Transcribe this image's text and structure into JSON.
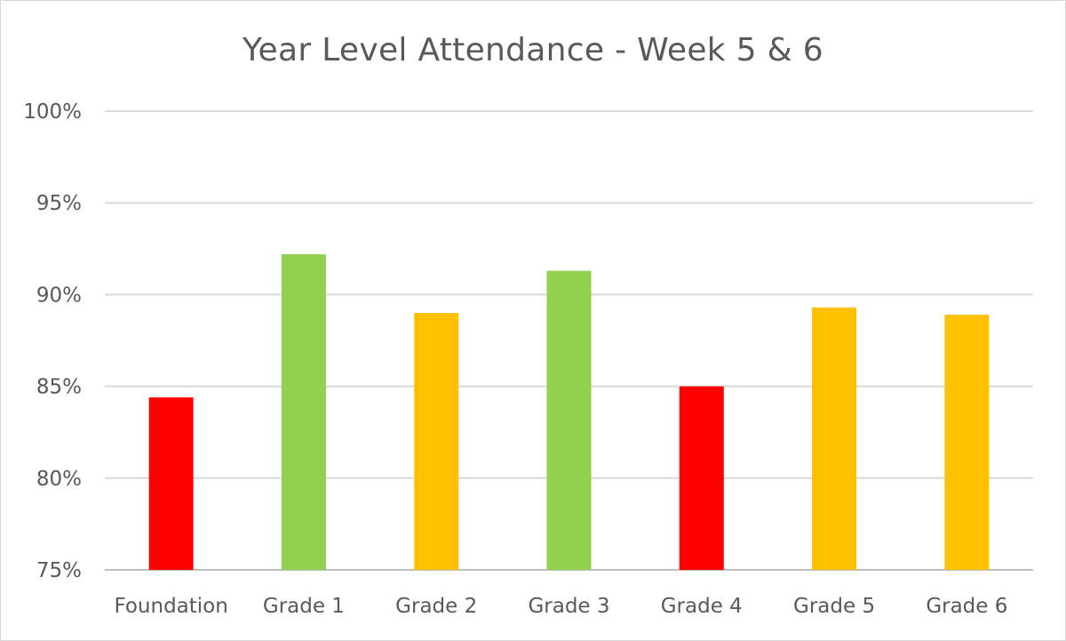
{
  "chart_data": {
    "type": "bar",
    "title": "Year Level Attendance - Week 5 & 6",
    "xlabel": "",
    "ylabel": "",
    "categories": [
      "Foundation",
      "Grade 1",
      "Grade 2",
      "Grade 3",
      "Grade 4",
      "Grade 5",
      "Grade 6"
    ],
    "values": [
      84.4,
      92.2,
      89.0,
      91.3,
      85.0,
      89.3,
      88.9
    ],
    "bar_colors": [
      "#ff0000",
      "#92d050",
      "#ffc000",
      "#92d050",
      "#ff0000",
      "#ffc000",
      "#ffc000"
    ],
    "ylim": [
      75,
      100
    ],
    "yticks": [
      75,
      80,
      85,
      90,
      95,
      100
    ],
    "ytick_labels": [
      "75%",
      "80%",
      "85%",
      "90%",
      "95%",
      "100%"
    ],
    "grid": true,
    "legend": "none"
  }
}
